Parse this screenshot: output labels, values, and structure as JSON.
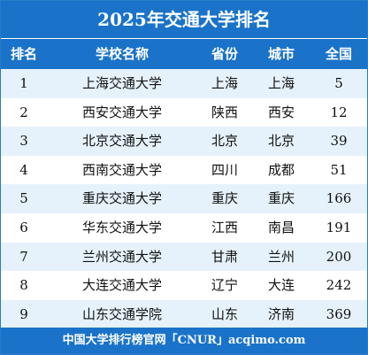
{
  "title": "2025年交通大学排名",
  "headers": [
    "排名",
    "学校名称",
    "省份",
    "城市",
    "全国"
  ],
  "rows": [
    [
      "1",
      "上海交通大学",
      "上海",
      "上海",
      "5"
    ],
    [
      "2",
      "西安交通大学",
      "陕西",
      "西安",
      "12"
    ],
    [
      "3",
      "北京交通大学",
      "北京",
      "北京",
      "39"
    ],
    [
      "4",
      "西南交通大学",
      "四川",
      "成都",
      "51"
    ],
    [
      "5",
      "重庆交通大学",
      "重庆",
      "重庆",
      "166"
    ],
    [
      "6",
      "华东交通大学",
      "江西",
      "南昌",
      "191"
    ],
    [
      "7",
      "兰州交通大学",
      "甘肃",
      "兰州",
      "200"
    ],
    [
      "8",
      "大连交通大学",
      "辽宁",
      "大连",
      "242"
    ],
    [
      "9",
      "山东交通学院",
      "山东",
      "济南",
      "369"
    ]
  ],
  "footer": "中国大学排行榜官网「CNUR」acqimo.com",
  "colors": {
    "header_bg": "#1a73c9",
    "stripe": "#e6f2fb"
  }
}
